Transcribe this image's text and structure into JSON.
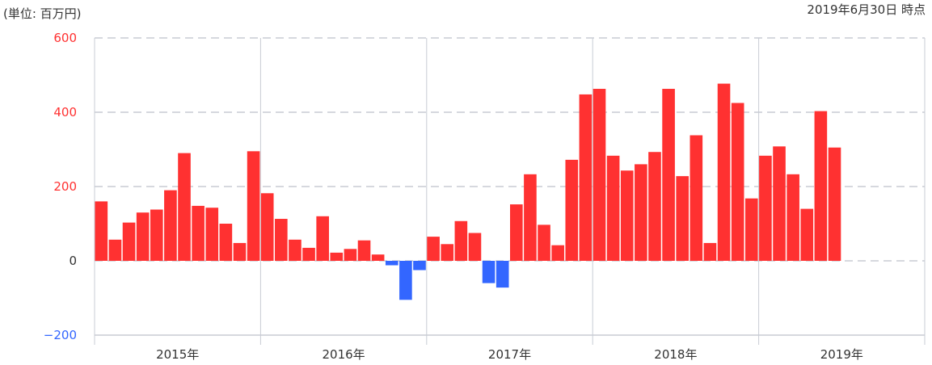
{
  "header": {
    "unit_label": "(単位: 百万円)",
    "as_of_label": "2019年6月30日 時点"
  },
  "chart_data": {
    "type": "bar",
    "ylim": [
      -200,
      600
    ],
    "y_ticks": [
      {
        "value": 600,
        "label": "600"
      },
      {
        "value": 400,
        "label": "400"
      },
      {
        "value": 200,
        "label": "200"
      },
      {
        "value": 0,
        "label": "0"
      },
      {
        "value": -200,
        "label": "−200"
      }
    ],
    "x_ticks": [
      "2015年",
      "2016年",
      "2017年",
      "2018年",
      "2019年"
    ],
    "months_per_year": 12,
    "values": [
      160,
      57,
      103,
      130,
      138,
      190,
      290,
      148,
      143,
      100,
      48,
      295,
      182,
      113,
      57,
      35,
      120,
      22,
      32,
      55,
      17,
      -12,
      -105,
      -25,
      65,
      45,
      107,
      75,
      -60,
      -72,
      152,
      233,
      97,
      42,
      272,
      448,
      463,
      283,
      243,
      260,
      293,
      463,
      228,
      338,
      48,
      477,
      425,
      168,
      283,
      308,
      233,
      140,
      403,
      305
    ],
    "colors": {
      "positive": "#ff3131",
      "negative": "#3366ff",
      "positive_tick": "#ff3131",
      "negative_tick": "#3366ff",
      "grid": "#c8ccd4",
      "zero_tick": "#333333"
    },
    "grid": true
  }
}
